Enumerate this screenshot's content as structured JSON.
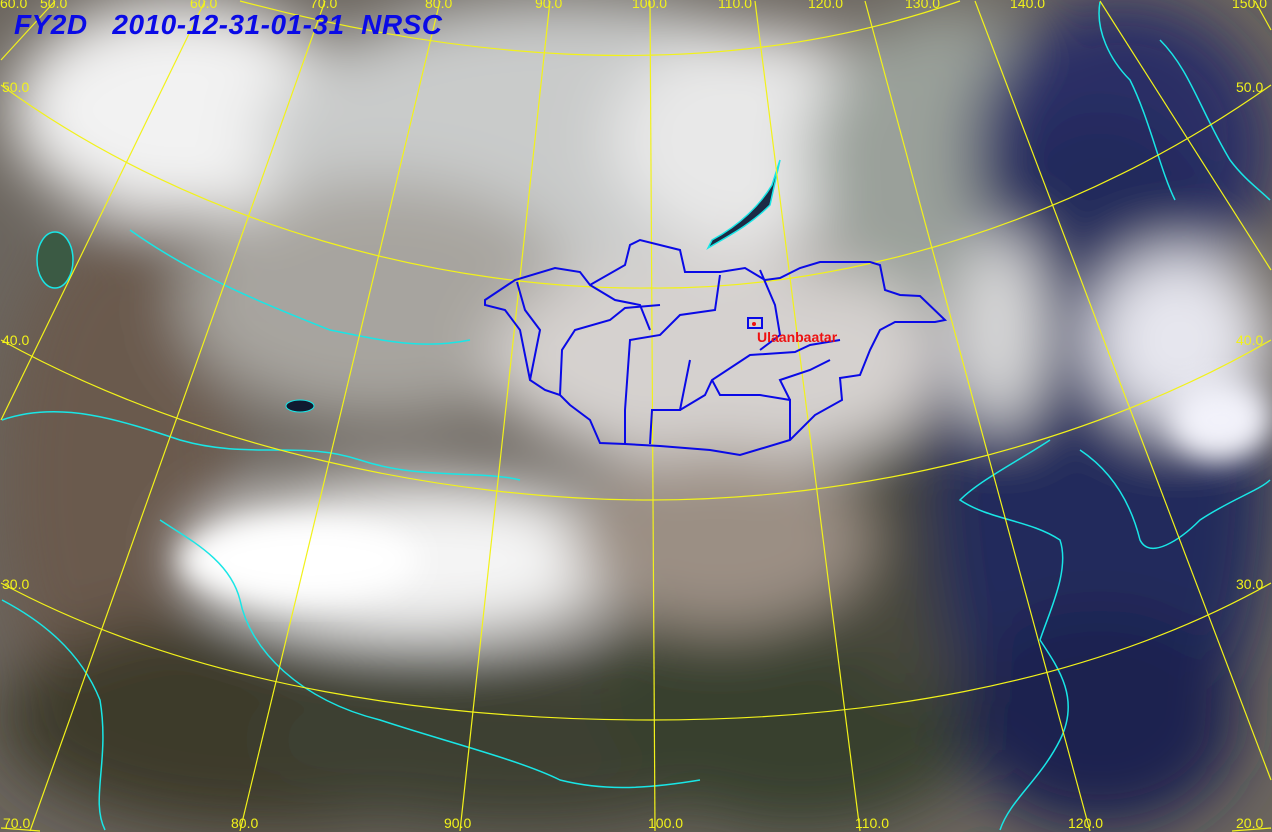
{
  "header": {
    "satellite": "FY2D",
    "datetime": "2010-12-31-01-31",
    "agency": "NRSC"
  },
  "graticule": {
    "top_labels": [
      "60.0",
      "50.0",
      "60.0",
      "70.0",
      "80.0",
      "90.0",
      "100.0",
      "110.0",
      "120.0",
      "130.0",
      "140.0",
      "150.0"
    ],
    "bottom_labels": [
      "70.0",
      "80.0",
      "90.0",
      "100.0",
      "110.0",
      "120.0"
    ],
    "left_labels": [
      "50.0",
      "40.0",
      "30.0"
    ],
    "right_labels": [
      "50.0",
      "40.0",
      "30.0",
      "20.0"
    ],
    "color": "#f2f21a"
  },
  "city": {
    "name": "Ulaanbaatar",
    "color": "#ee1111"
  },
  "colors": {
    "coastline": "#19e6e6",
    "admin_border": "#0a0ae6",
    "ocean": "#22285a"
  }
}
